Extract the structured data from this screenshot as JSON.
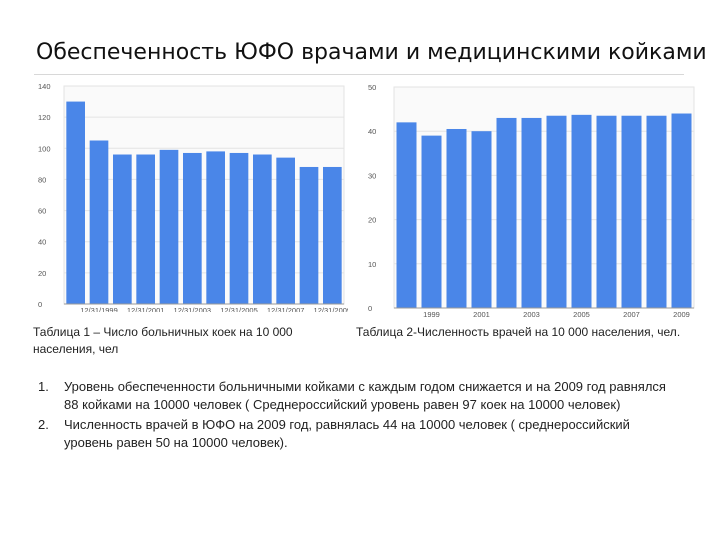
{
  "title": "Обеспеченность ЮФО врачами и медицинскими койками",
  "captions": {
    "chart1": "Таблица 1 – Число больничных коек на 10 000 населения, чел",
    "chart2": "Таблица 2-Численность врачей на 10 000 населения, чел."
  },
  "points": [
    {
      "num": "1.",
      "text": "Уровень обеспеченности больничными койками с каждым годом снижается и на 2009 год равнялся 88 койками на 10000 человек ( Среднероссийский уровень равен 97 коек на 10000 человек)"
    },
    {
      "num": "2.",
      "text": "Численность врачей в ЮФО на 2009 год, равнялась 44 на 10000 человек ( среднероссийский уровень равен 50 на 10000 человек)."
    }
  ],
  "colors": {
    "bar": "#4a86e8",
    "grid": "#e3e3e3",
    "axis": "#999999"
  },
  "chart_data": [
    {
      "type": "bar",
      "title": "",
      "ylim": [
        0,
        140
      ],
      "yticks": [
        0,
        20,
        40,
        60,
        80,
        100,
        120,
        140
      ],
      "grid": true,
      "categories": [
        "",
        "12/31/1999",
        "",
        "12/31/2001",
        "",
        "12/31/2003",
        "",
        "12/31/2005",
        "",
        "12/31/2007",
        "",
        "12/31/2009"
      ],
      "values": [
        130,
        105,
        96,
        96,
        99,
        97,
        98,
        97,
        96,
        94,
        88,
        88
      ]
    },
    {
      "type": "bar",
      "title": "",
      "ylim": [
        0,
        50
      ],
      "yticks": [
        0,
        10,
        20,
        30,
        40,
        50
      ],
      "ytick_labels": [
        "0",
        "10",
        "20",
        "30",
        "40",
        "50"
      ],
      "grid": true,
      "categories": [
        "",
        "1999",
        "",
        "2001",
        "",
        "2003",
        "",
        "2005",
        "",
        "2007",
        "",
        "2009"
      ],
      "values": [
        42,
        39,
        40.5,
        40,
        43,
        43,
        43.5,
        43.7,
        43.5,
        43.5,
        43.5,
        44
      ]
    }
  ]
}
